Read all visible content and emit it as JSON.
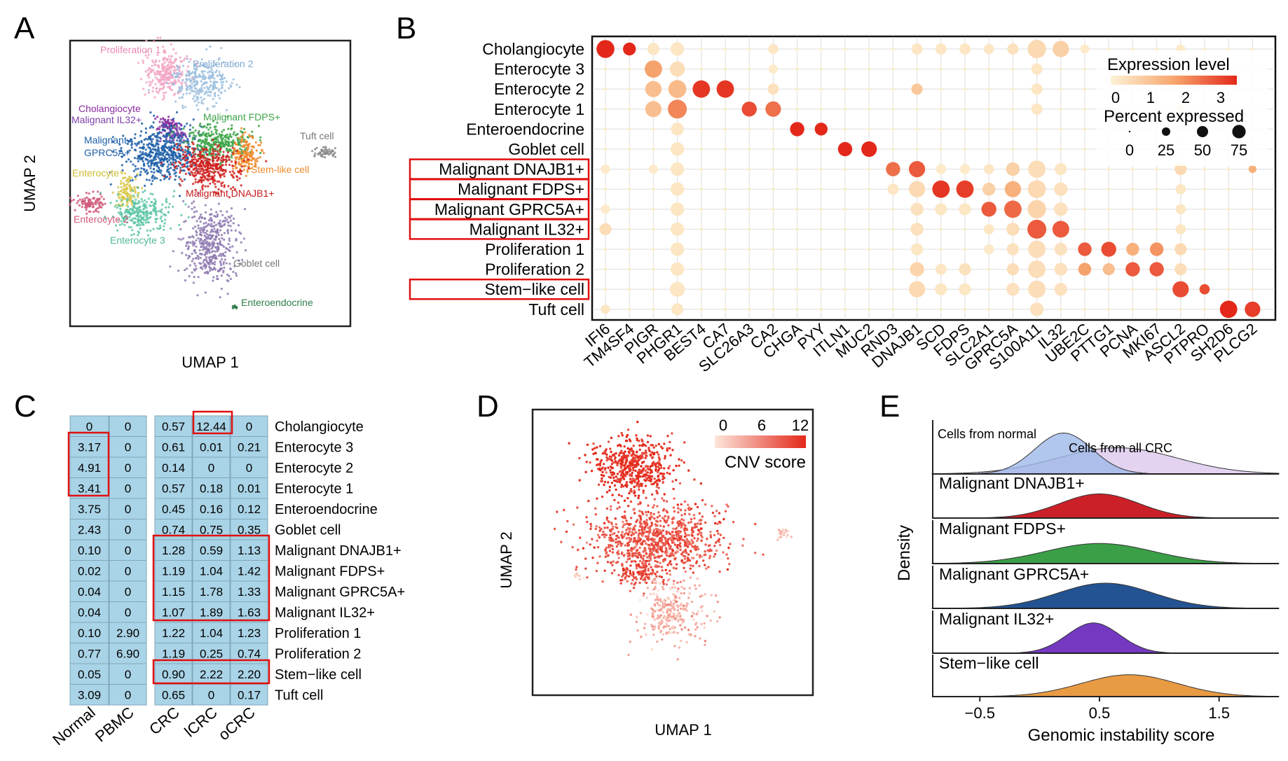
{
  "chart_data": [
    {
      "panel": "A",
      "type": "scatter",
      "title": "",
      "xlabel": "UMAP 1",
      "ylabel": "UMAP 2",
      "clusters": [
        {
          "name": "Proliferation 1",
          "color": "#f2a4c4"
        },
        {
          "name": "Proliferation 2",
          "color": "#9ec0de"
        },
        {
          "name": "Cholangiocyte",
          "color": "#8a2b9e"
        },
        {
          "name": "Malignant IL32+",
          "color": "#7b3fa8"
        },
        {
          "name": "Malignant FDPS+",
          "color": "#3da448"
        },
        {
          "name": "Malignant GPRC5A+",
          "color": "#1d5fa8"
        },
        {
          "name": "Tuft cell",
          "color": "#8c8c8c"
        },
        {
          "name": "Enterocyte",
          "color": "#d9c84a"
        },
        {
          "name": "Stem-like cell",
          "color": "#f08a2a"
        },
        {
          "name": "Malignant DNAJB1+",
          "color": "#d0201e"
        },
        {
          "name": "Enterocyte 2",
          "color": "#d05a7a"
        },
        {
          "name": "Enterocyte 3",
          "color": "#5ec6a8"
        },
        {
          "name": "Goblet cell",
          "color": "#8e79b0"
        },
        {
          "name": "Enteroendocrine",
          "color": "#2e7d4a"
        }
      ],
      "cluster_labels": [
        {
          "text": "Proliferation 1",
          "color": "#e888b4"
        },
        {
          "text": "Proliferation 2",
          "color": "#7fa8d0"
        },
        {
          "text": "Cholangiocyte",
          "color": "#8a2b9e"
        },
        {
          "text": "Malignant IL32+",
          "color": "#7b3fa8"
        },
        {
          "text": "Malignant FDPS+",
          "color": "#3da448"
        },
        {
          "text": "Malignant",
          "color": "#1d5fa8"
        },
        {
          "text": "GPRC5A+",
          "color": "#1d5fa8"
        },
        {
          "text": "Tuft cell",
          "color": "#777777"
        },
        {
          "text": "Enterocyte",
          "color": "#cdbb30"
        },
        {
          "text": "Stem-like cell",
          "color": "#f08a2a"
        },
        {
          "text": "Malignant DNAJB1+",
          "color": "#c41a1a"
        },
        {
          "text": "Enterocyte 2",
          "color": "#d05a7a"
        },
        {
          "text": "Enterocyte 3",
          "color": "#4fb89a"
        },
        {
          "text": "Goblet cell",
          "color": "#777777"
        },
        {
          "text": "Enteroendocrine",
          "color": "#2e7d4a"
        }
      ]
    },
    {
      "panel": "B",
      "type": "dotplot",
      "genes": [
        "IFI6",
        "TM4SF4",
        "PIGR",
        "PHGR1",
        "BEST4",
        "CA7",
        "SLC26A3",
        "CA2",
        "CHGA",
        "PYY",
        "ITLN1",
        "MUC2",
        "RND3",
        "DNAJB1",
        "SCD",
        "FDPS",
        "SLC2A1",
        "GPRC5A",
        "S100A11",
        "IL32",
        "UBE2C",
        "PTTG1",
        "PCNA",
        "MKI67",
        "ASCL2",
        "PTPRO",
        "SH2D6",
        "PLCG2"
      ],
      "cell_types": [
        "Cholangiocyte",
        "Enterocyte 3",
        "Enterocyte 2",
        "Enterocyte 1",
        "Enteroendocrine",
        "Goblet cell",
        "Malignant DNAJB1+",
        "Malignant FDPS+",
        "Malignant GPRC5A+",
        "Malignant IL32+",
        "Proliferation 1",
        "Proliferation 2",
        "Stem−like cell",
        "Tuft cell"
      ],
      "highlighted": [
        "Malignant DNAJB1+",
        "Malignant FDPS+",
        "Malignant GPRC5A+",
        "Malignant IL32+",
        "Stem−like cell"
      ],
      "legend_expression": {
        "title": "Expression level",
        "ticks": [
          "0",
          "1",
          "2",
          "3"
        ],
        "range": [
          0,
          3.5
        ]
      },
      "legend_percent": {
        "title": "Percent expressed",
        "ticks": [
          "0",
          "25",
          "50",
          "75"
        ]
      },
      "dots": [
        [
          "Cholangiocyte",
          "IFI6",
          3.5,
          75
        ],
        [
          "Cholangiocyte",
          "TM4SF4",
          3.5,
          35
        ],
        [
          "Cholangiocyte",
          "PIGR",
          0.3,
          30
        ],
        [
          "Cholangiocyte",
          "PHGR1",
          0.3,
          40
        ],
        [
          "Cholangiocyte",
          "CA2",
          0.3,
          20
        ],
        [
          "Cholangiocyte",
          "DNAJB1",
          0.3,
          25
        ],
        [
          "Cholangiocyte",
          "SCD",
          0.3,
          25
        ],
        [
          "Cholangiocyte",
          "FDPS",
          0.3,
          25
        ],
        [
          "Cholangiocyte",
          "SLC2A1",
          0.3,
          20
        ],
        [
          "Cholangiocyte",
          "GPRC5A",
          0.4,
          25
        ],
        [
          "Cholangiocyte",
          "S100A11",
          0.6,
          80
        ],
        [
          "Cholangiocyte",
          "IL32",
          0.8,
          60
        ],
        [
          "Cholangiocyte",
          "UBE2C",
          0.2,
          15
        ],
        [
          "Cholangiocyte",
          "ASCL2",
          0.2,
          15
        ],
        [
          "Enterocyte 3",
          "PIGR",
          1.8,
          70
        ],
        [
          "Enterocyte 3",
          "PHGR1",
          0.5,
          50
        ],
        [
          "Enterocyte 3",
          "CA2",
          0.2,
          15
        ],
        [
          "Enterocyte 3",
          "S100A11",
          0.3,
          25
        ],
        [
          "Enterocyte 2",
          "PIGR",
          1.2,
          60
        ],
        [
          "Enterocyte 2",
          "PHGR1",
          1.3,
          75
        ],
        [
          "Enterocyte 2",
          "BEST4",
          3.3,
          70
        ],
        [
          "Enterocyte 2",
          "CA7",
          3.3,
          70
        ],
        [
          "Enterocyte 2",
          "CA2",
          0.4,
          25
        ],
        [
          "Enterocyte 2",
          "DNAJB1",
          1.0,
          25
        ],
        [
          "Enterocyte 2",
          "S100A11",
          0.3,
          25
        ],
        [
          "Enterocyte 1",
          "PIGR",
          1.2,
          60
        ],
        [
          "Enterocyte 1",
          "PHGR1",
          2.2,
          85
        ],
        [
          "Enterocyte 1",
          "SLC26A3",
          3.0,
          50
        ],
        [
          "Enterocyte 1",
          "CA2",
          2.5,
          55
        ],
        [
          "Enterocyte 1",
          "S100A11",
          0.3,
          25
        ],
        [
          "Enterocyte 1",
          "ASCL2",
          0.2,
          15
        ],
        [
          "Enteroendocrine",
          "PHGR1",
          0.3,
          35
        ],
        [
          "Enteroendocrine",
          "CHGA",
          3.5,
          45
        ],
        [
          "Enteroendocrine",
          "PYY",
          3.5,
          35
        ],
        [
          "Goblet cell",
          "PHGR1",
          0.3,
          40
        ],
        [
          "Goblet cell",
          "ITLN1",
          3.5,
          45
        ],
        [
          "Goblet cell",
          "MUC2",
          3.5,
          55
        ],
        [
          "Malignant DNAJB1+",
          "IFI6",
          0.2,
          15
        ],
        [
          "Malignant DNAJB1+",
          "PIGR",
          0.2,
          15
        ],
        [
          "Malignant DNAJB1+",
          "PHGR1",
          0.3,
          40
        ],
        [
          "Malignant DNAJB1+",
          "RND3",
          2.5,
          45
        ],
        [
          "Malignant DNAJB1+",
          "DNAJB1",
          2.8,
          60
        ],
        [
          "Malignant DNAJB1+",
          "SCD",
          0.2,
          20
        ],
        [
          "Malignant DNAJB1+",
          "FDPS",
          0.2,
          20
        ],
        [
          "Malignant DNAJB1+",
          "SLC2A1",
          0.3,
          20
        ],
        [
          "Malignant DNAJB1+",
          "GPRC5A",
          0.8,
          40
        ],
        [
          "Malignant DNAJB1+",
          "S100A11",
          0.5,
          70
        ],
        [
          "Malignant DNAJB1+",
          "IL32",
          0.3,
          30
        ],
        [
          "Malignant DNAJB1+",
          "ASCL2",
          0.6,
          30
        ],
        [
          "Malignant DNAJB1+",
          "PLCG2",
          1.5,
          10
        ],
        [
          "Malignant FDPS+",
          "PHGR1",
          0.3,
          40
        ],
        [
          "Malignant FDPS+",
          "RND3",
          0.3,
          25
        ],
        [
          "Malignant FDPS+",
          "DNAJB1",
          0.6,
          60
        ],
        [
          "Malignant FDPS+",
          "SCD",
          3.3,
          70
        ],
        [
          "Malignant FDPS+",
          "FDPS",
          3.2,
          70
        ],
        [
          "Malignant FDPS+",
          "SLC2A1",
          0.8,
          35
        ],
        [
          "Malignant FDPS+",
          "GPRC5A",
          1.5,
          60
        ],
        [
          "Malignant FDPS+",
          "S100A11",
          0.6,
          75
        ],
        [
          "Malignant FDPS+",
          "IL32",
          0.4,
          40
        ],
        [
          "Malignant FDPS+",
          "ASCL2",
          0.3,
          20
        ],
        [
          "Malignant GPRC5A+",
          "IFI6",
          0.2,
          15
        ],
        [
          "Malignant GPRC5A+",
          "PHGR1",
          0.3,
          40
        ],
        [
          "Malignant GPRC5A+",
          "DNAJB1",
          0.4,
          35
        ],
        [
          "Malignant GPRC5A+",
          "SCD",
          0.3,
          30
        ],
        [
          "Malignant GPRC5A+",
          "FDPS",
          0.3,
          30
        ],
        [
          "Malignant GPRC5A+",
          "SLC2A1",
          2.8,
          50
        ],
        [
          "Malignant GPRC5A+",
          "GPRC5A",
          2.6,
          70
        ],
        [
          "Malignant GPRC5A+",
          "S100A11",
          0.7,
          80
        ],
        [
          "Malignant GPRC5A+",
          "IL32",
          0.4,
          40
        ],
        [
          "Malignant GPRC5A+",
          "ASCL2",
          0.3,
          20
        ],
        [
          "Malignant IL32+",
          "IFI6",
          0.5,
          30
        ],
        [
          "Malignant IL32+",
          "PHGR1",
          0.3,
          40
        ],
        [
          "Malignant IL32+",
          "DNAJB1",
          0.4,
          35
        ],
        [
          "Malignant IL32+",
          "SLC2A1",
          0.3,
          20
        ],
        [
          "Malignant IL32+",
          "GPRC5A",
          0.5,
          35
        ],
        [
          "Malignant IL32+",
          "S100A11",
          2.8,
          85
        ],
        [
          "Malignant IL32+",
          "IL32",
          2.8,
          65
        ],
        [
          "Malignant IL32+",
          "ASCL2",
          0.3,
          20
        ],
        [
          "Proliferation 1",
          "PHGR1",
          0.3,
          40
        ],
        [
          "Proliferation 1",
          "DNAJB1",
          0.3,
          30
        ],
        [
          "Proliferation 1",
          "SLC2A1",
          0.2,
          20
        ],
        [
          "Proliferation 1",
          "GPRC5A",
          0.4,
          30
        ],
        [
          "Proliferation 1",
          "S100A11",
          0.5,
          70
        ],
        [
          "Proliferation 1",
          "IL32",
          0.4,
          35
        ],
        [
          "Proliferation 1",
          "UBE2C",
          2.8,
          40
        ],
        [
          "Proliferation 1",
          "PTTG1",
          3.0,
          50
        ],
        [
          "Proliferation 1",
          "PCNA",
          1.5,
          35
        ],
        [
          "Proliferation 1",
          "MKI67",
          2.0,
          40
        ],
        [
          "Proliferation 1",
          "ASCL2",
          0.6,
          30
        ],
        [
          "Proliferation 2",
          "PHGR1",
          0.3,
          40
        ],
        [
          "Proliferation 2",
          "DNAJB1",
          0.7,
          45
        ],
        [
          "Proliferation 2",
          "SCD",
          0.3,
          25
        ],
        [
          "Proliferation 2",
          "FDPS",
          0.4,
          30
        ],
        [
          "Proliferation 2",
          "GPRC5A",
          0.5,
          30
        ],
        [
          "Proliferation 2",
          "S100A11",
          0.5,
          70
        ],
        [
          "Proliferation 2",
          "IL32",
          0.4,
          35
        ],
        [
          "Proliferation 2",
          "UBE2C",
          1.8,
          35
        ],
        [
          "Proliferation 2",
          "PTTG1",
          1.2,
          30
        ],
        [
          "Proliferation 2",
          "PCNA",
          2.8,
          45
        ],
        [
          "Proliferation 2",
          "MKI67",
          2.8,
          45
        ],
        [
          "Proliferation 2",
          "ASCL2",
          0.5,
          30
        ],
        [
          "Stem−like cell",
          "PHGR1",
          0.3,
          50
        ],
        [
          "Stem−like cell",
          "DNAJB1",
          0.6,
          60
        ],
        [
          "Stem−like cell",
          "SCD",
          0.3,
          30
        ],
        [
          "Stem−like cell",
          "FDPS",
          0.3,
          30
        ],
        [
          "Stem−like cell",
          "GPRC5A",
          0.4,
          35
        ],
        [
          "Stem−like cell",
          "S100A11",
          0.5,
          70
        ],
        [
          "Stem−like cell",
          "IL32",
          0.4,
          35
        ],
        [
          "Stem−like cell",
          "ASCL2",
          3.0,
          60
        ],
        [
          "Stem−like cell",
          "PTPRO",
          3.0,
          20
        ],
        [
          "Tuft cell",
          "IFI6",
          0.3,
          15
        ],
        [
          "Tuft cell",
          "PHGR1",
          0.3,
          30
        ],
        [
          "Tuft cell",
          "S100A11",
          0.4,
          40
        ],
        [
          "Tuft cell",
          "SH2D6",
          3.5,
          70
        ],
        [
          "Tuft cell",
          "PLCG2",
          3.2,
          55
        ]
      ]
    },
    {
      "panel": "C",
      "type": "table",
      "columns": [
        "Normal",
        "PBMC",
        "CRC",
        "lCRC",
        "oCRC"
      ],
      "rows": [
        {
          "label": "Cholangiocyte",
          "values": [
            "0",
            "0",
            "0.57",
            "12.44",
            "0"
          ]
        },
        {
          "label": "Enterocyte 3",
          "values": [
            "3.17",
            "0",
            "0.61",
            "0.01",
            "0.21"
          ]
        },
        {
          "label": "Enterocyte 2",
          "values": [
            "4.91",
            "0",
            "0.14",
            "0",
            "0"
          ]
        },
        {
          "label": "Enterocyte 1",
          "values": [
            "3.41",
            "0",
            "0.57",
            "0.18",
            "0.01"
          ]
        },
        {
          "label": "Enteroendocrine",
          "values": [
            "3.75",
            "0",
            "0.45",
            "0.16",
            "0.12"
          ]
        },
        {
          "label": "Goblet cell",
          "values": [
            "2.43",
            "0",
            "0.74",
            "0.75",
            "0.35"
          ]
        },
        {
          "label": "Malignant DNAJB1+",
          "values": [
            "0.10",
            "0",
            "1.28",
            "0.59",
            "1.13"
          ]
        },
        {
          "label": "Malignant FDPS+",
          "values": [
            "0.02",
            "0",
            "1.19",
            "1.04",
            "1.42"
          ]
        },
        {
          "label": "Malignant GPRC5A+",
          "values": [
            "0.04",
            "0",
            "1.15",
            "1.78",
            "1.33"
          ]
        },
        {
          "label": "Malignant IL32+",
          "values": [
            "0.04",
            "0",
            "1.07",
            "1.89",
            "1.63"
          ]
        },
        {
          "label": "Proliferation 1",
          "values": [
            "0.10",
            "2.90",
            "1.22",
            "1.04",
            "1.23"
          ]
        },
        {
          "label": "Proliferation 2",
          "values": [
            "0.77",
            "6.90",
            "1.19",
            "0.25",
            "0.74"
          ]
        },
        {
          "label": "Stem−like cell",
          "values": [
            "0.05",
            "0",
            "0.90",
            "2.22",
            "2.20"
          ]
        },
        {
          "label": "Tuft cell",
          "values": [
            "3.09",
            "0",
            "0.65",
            "0",
            "0.17"
          ]
        }
      ]
    },
    {
      "panel": "D",
      "type": "scatter",
      "xlabel": "UMAP 1",
      "ylabel": "UMAP 2",
      "colorbar": {
        "title": "CNV score",
        "ticks": [
          "0",
          "6",
          "12"
        ],
        "range": [
          0,
          12
        ],
        "low_color": "#fde6dc",
        "high_color": "#e3281a"
      }
    },
    {
      "panel": "E",
      "type": "area",
      "xlabel": "Genomic instability score",
      "ylabel": "Density",
      "xticks": [
        "−0.5",
        "0.5",
        "1.5"
      ],
      "xtick_values": [
        -0.5,
        0.5,
        1.5
      ],
      "xlim": [
        -0.9,
        2.0
      ],
      "series": [
        {
          "name": "Cells from normal",
          "color": "#9fb9e8",
          "peak": 0.2,
          "sd": 0.24,
          "height": 0.78
        },
        {
          "name": "Cells from all CRC",
          "color": "#dcc8ee",
          "peak": 0.65,
          "sd": 0.5,
          "height": 0.5
        },
        {
          "name": "Malignant DNAJB1+",
          "color": "#c8141c",
          "peak": 0.5,
          "sd": 0.33,
          "height": 0.72
        },
        {
          "name": "Malignant FDPS+",
          "color": "#2f9a3d",
          "peak": 0.5,
          "sd": 0.45,
          "height": 0.6
        },
        {
          "name": "Malignant GPRC5A+",
          "color": "#174a8c",
          "peak": 0.55,
          "sd": 0.4,
          "height": 0.75
        },
        {
          "name": "Malignant IL32+",
          "color": "#6d2ebd",
          "peak": 0.45,
          "sd": 0.22,
          "height": 0.9
        },
        {
          "name": "Stem−like cell",
          "color": "#e8963a",
          "peak": 0.75,
          "sd": 0.4,
          "height": 0.65
        }
      ]
    }
  ],
  "panel_letters": [
    "A",
    "B",
    "C",
    "D",
    "E"
  ]
}
